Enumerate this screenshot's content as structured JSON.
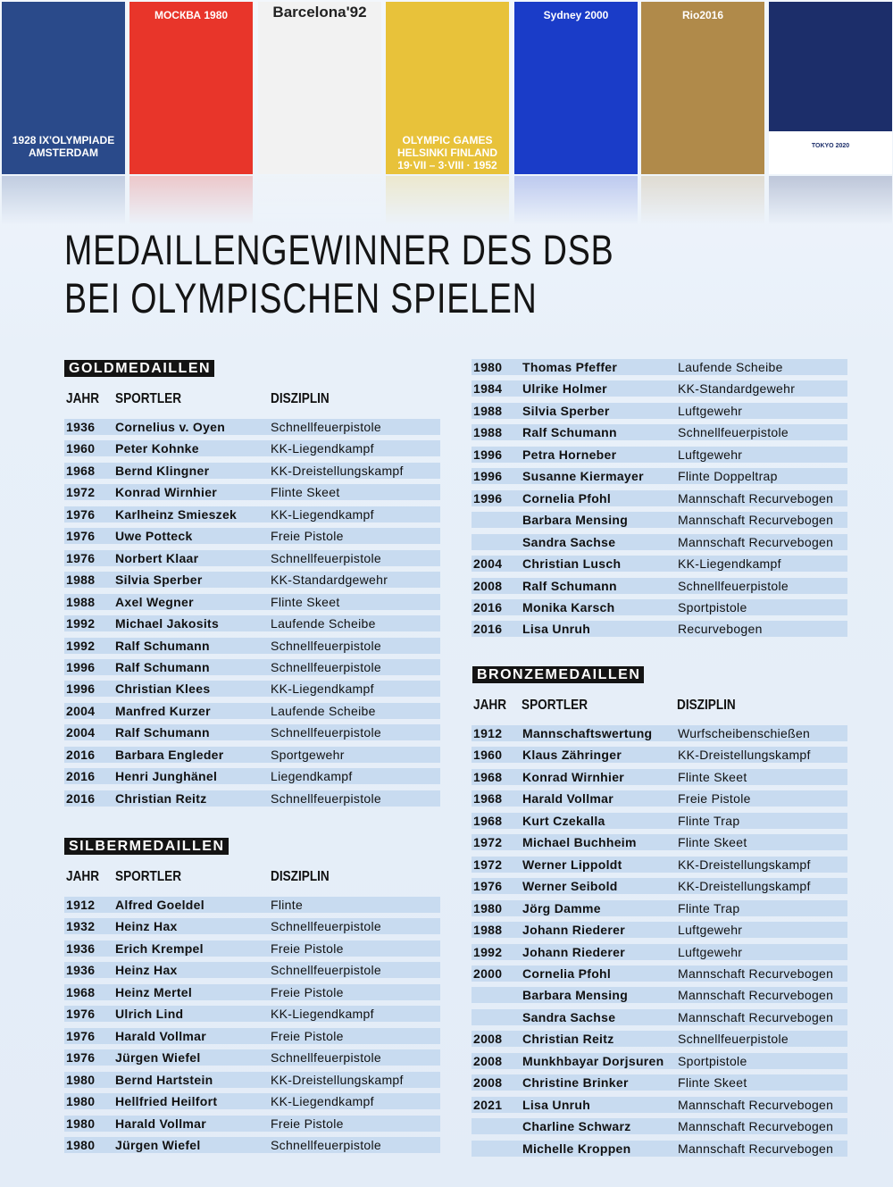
{
  "posters": [
    {
      "text": "1928 IX'OLYMPIADE AMSTERDAM",
      "color": "#2a4a8a"
    },
    {
      "text": "МОСКВА 1980",
      "color": "#e8352a"
    },
    {
      "text": "Barcelona'92",
      "color": "#f2f2f2"
    },
    {
      "text": "OLYMPIC GAMES HELSINKI FINLAND 19·VII – 3·VIII · 1952",
      "color": "#e8c23a"
    },
    {
      "text": "Sydney 2000",
      "color": "#1a3cc8"
    },
    {
      "text": "Rio2016",
      "color": "#b08a4a"
    },
    {
      "text": "TOKYO 2020",
      "color": "#1c2e6a"
    }
  ],
  "title": {
    "line1": "MEDAILLENGEWINNER DES DSB",
    "line2": "BEI OLYMPISCHEN SPIELEN"
  },
  "columns": {
    "year": "JAHR",
    "athlete": "SPORTLER",
    "discipline": "DISZIPLIN"
  },
  "colors": {
    "row": "#c8dbf0",
    "label_bg": "#141414"
  },
  "gold": {
    "label": "GOLDMEDAILLEN",
    "rows": [
      [
        "1936",
        "Cornelius v. Oyen",
        "Schnellfeuerpistole"
      ],
      [
        "1960",
        "Peter Kohnke",
        "KK-Liegendkampf"
      ],
      [
        "1968",
        "Bernd Klingner",
        "KK-Dreistellungskampf"
      ],
      [
        "1972",
        "Konrad Wirnhier",
        "Flinte Skeet"
      ],
      [
        "1976",
        "Karlheinz Smieszek",
        "KK-Liegendkampf"
      ],
      [
        "1976",
        "Uwe Potteck",
        "Freie Pistole"
      ],
      [
        "1976",
        "Norbert Klaar",
        "Schnellfeuerpistole"
      ],
      [
        "1988",
        "Silvia Sperber",
        "KK-Standardgewehr"
      ],
      [
        "1988",
        "Axel Wegner",
        "Flinte Skeet"
      ],
      [
        "1992",
        "Michael Jakosits",
        "Laufende Scheibe"
      ],
      [
        "1992",
        "Ralf Schumann",
        "Schnellfeuerpistole"
      ],
      [
        "1996",
        "Ralf Schumann",
        "Schnellfeuerpistole"
      ],
      [
        "1996",
        "Christian Klees",
        "KK-Liegendkampf"
      ],
      [
        "2004",
        "Manfred Kurzer",
        "Laufende Scheibe"
      ],
      [
        "2004",
        "Ralf Schumann",
        "Schnellfeuerpistole"
      ],
      [
        "2016",
        "Barbara Engleder",
        "Sportgewehr"
      ],
      [
        "2016",
        "Henri Junghänel",
        "Liegendkampf"
      ],
      [
        "2016",
        "Christian Reitz",
        "Schnellfeuerpistole"
      ]
    ]
  },
  "silver": {
    "label": "SILBERMEDAILLEN",
    "rows": [
      [
        "1912",
        "Alfred Goeldel",
        "Flinte"
      ],
      [
        "1932",
        "Heinz Hax",
        "Schnellfeuerpistole"
      ],
      [
        "1936",
        "Erich Krempel",
        "Freie Pistole"
      ],
      [
        "1936",
        "Heinz Hax",
        "Schnellfeuerpistole"
      ],
      [
        "1968",
        "Heinz Mertel",
        "Freie Pistole"
      ],
      [
        "1976",
        "Ulrich Lind",
        "KK-Liegendkampf"
      ],
      [
        "1976",
        "Harald Vollmar",
        "Freie Pistole"
      ],
      [
        "1976",
        "Jürgen Wiefel",
        "Schnellfeuerpistole"
      ],
      [
        "1980",
        "Bernd Hartstein",
        "KK-Dreistellungskampf"
      ],
      [
        "1980",
        "Hellfried Heilfort",
        "KK-Liegendkampf"
      ],
      [
        "1980",
        "Harald Vollmar",
        "Freie Pistole"
      ],
      [
        "1980",
        "Jürgen Wiefel",
        "Schnellfeuerpistole"
      ]
    ]
  },
  "silver_cont": {
    "rows": [
      [
        "1980",
        "Thomas Pfeffer",
        "Laufende Scheibe"
      ],
      [
        "1984",
        "Ulrike Holmer",
        "KK-Standardgewehr"
      ],
      [
        "1988",
        "Silvia Sperber",
        "Luftgewehr"
      ],
      [
        "1988",
        "Ralf Schumann",
        "Schnellfeuerpistole"
      ],
      [
        "1996",
        "Petra Horneber",
        "Luftgewehr"
      ],
      [
        "1996",
        "Susanne Kiermayer",
        "Flinte Doppeltrap"
      ],
      [
        "1996",
        "Cornelia Pfohl",
        "Mannschaft Recurvebogen"
      ],
      [
        "",
        "Barbara Mensing",
        "Mannschaft Recurvebogen"
      ],
      [
        "",
        "Sandra Sachse",
        "Mannschaft Recurvebogen"
      ],
      [
        "2004",
        "Christian Lusch",
        "KK-Liegendkampf"
      ],
      [
        "2008",
        "Ralf Schumann",
        "Schnellfeuerpistole"
      ],
      [
        "2016",
        "Monika Karsch",
        "Sportpistole"
      ],
      [
        "2016",
        "Lisa Unruh",
        "Recurvebogen"
      ]
    ]
  },
  "bronze": {
    "label": "BRONZEMEDAILLEN",
    "rows": [
      [
        "1912",
        "Mannschaftswertung",
        "Wurfscheibenschießen"
      ],
      [
        "1960",
        "Klaus Zähringer",
        "KK-Dreistellungskampf"
      ],
      [
        "1968",
        "Konrad Wirnhier",
        "Flinte Skeet"
      ],
      [
        "1968",
        "Harald Vollmar",
        "Freie Pistole"
      ],
      [
        "1968",
        "Kurt Czekalla",
        "Flinte Trap"
      ],
      [
        "1972",
        "Michael Buchheim",
        "Flinte Skeet"
      ],
      [
        "1972",
        "Werner Lippoldt",
        "KK-Dreistellungskampf"
      ],
      [
        "1976",
        "Werner Seibold",
        "KK-Dreistellungskampf"
      ],
      [
        "1980",
        "Jörg Damme",
        "Flinte Trap"
      ],
      [
        "1988",
        "Johann Riederer",
        "Luftgewehr"
      ],
      [
        "1992",
        "Johann Riederer",
        "Luftgewehr"
      ],
      [
        "2000",
        "Cornelia Pfohl",
        "Mannschaft Recurvebogen"
      ],
      [
        "",
        "Barbara Mensing",
        "Mannschaft Recurvebogen"
      ],
      [
        "",
        "Sandra Sachse",
        "Mannschaft Recurvebogen"
      ],
      [
        "2008",
        "Christian Reitz",
        "Schnellfeuerpistole"
      ],
      [
        "2008",
        "Munkhbayar Dorjsuren",
        "Sportpistole"
      ],
      [
        "2008",
        "Christine Brinker",
        "Flinte Skeet"
      ],
      [
        "2021",
        "Lisa Unruh",
        "Mannschaft Recurvebogen"
      ],
      [
        "",
        "Charline Schwarz",
        "Mannschaft Recurvebogen"
      ],
      [
        "",
        "Michelle Kroppen",
        "Mannschaft Recurvebogen"
      ]
    ]
  }
}
